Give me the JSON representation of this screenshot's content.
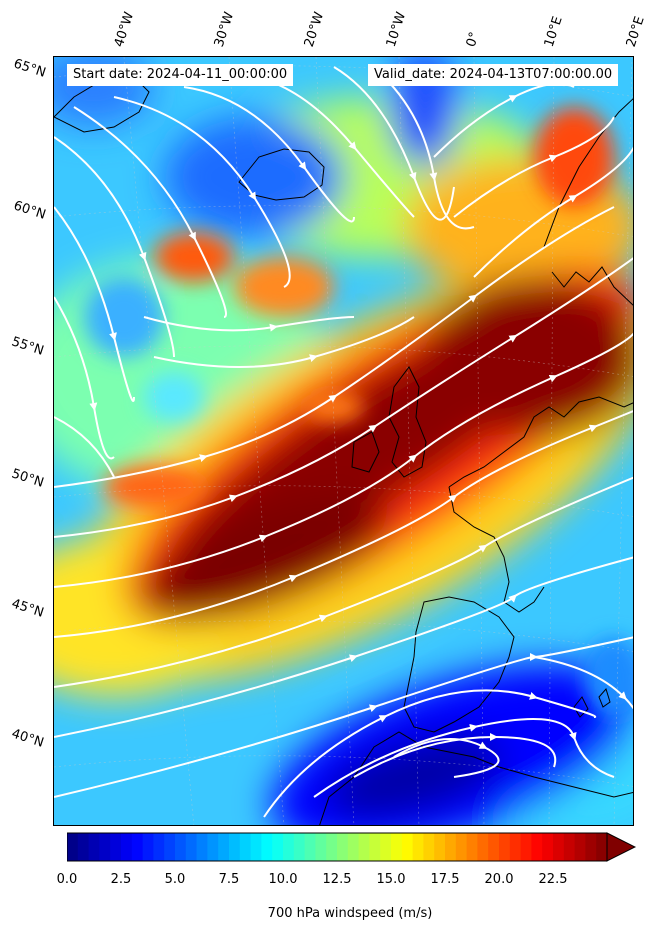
{
  "info": {
    "start_date": "Start date: 2024-04-11_00:00:00",
    "valid_date": "Valid_date: 2024-04-13T07:00:00.00"
  },
  "lat_labels": [
    "65°N",
    "60°N",
    "55°N",
    "50°N",
    "45°N",
    "40°N"
  ],
  "lon_labels": [
    "40°W",
    "30°W",
    "20°W",
    "10°W",
    "0°",
    "10°E",
    "20°E"
  ],
  "colorbar": {
    "label": "700 hPa windspeed (m/s)",
    "ticks": [
      "0.0",
      "2.5",
      "5.0",
      "7.5",
      "10.0",
      "12.5",
      "15.0",
      "17.5",
      "20.0",
      "22.5"
    ],
    "range": [
      0,
      25
    ],
    "colormap": "jet",
    "extend": "max"
  },
  "colors": {
    "streamline": "#ffffff",
    "coastline": "#000000"
  }
}
